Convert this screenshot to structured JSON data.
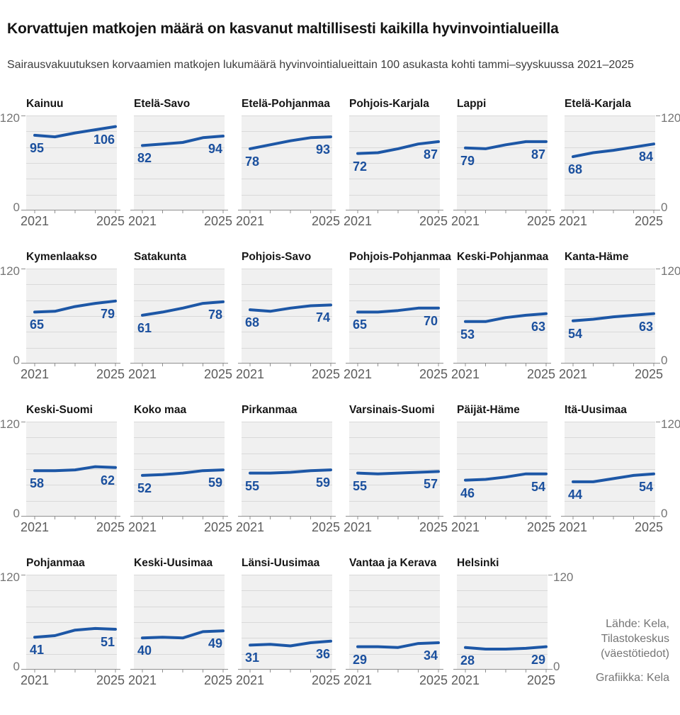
{
  "header": {
    "title": "Korvattujen matkojen määrä on kasvanut maltillisesti kaikilla hyvinvointialueilla",
    "subtitle": "Sairausvakuutuksen korvaamien matkojen lukumäärä hyvinvointialueittain 100 asukasta kohti tammi–syyskuussa 2021–2025"
  },
  "source": {
    "lahde": "Lähde: Kela,\nTilastokeskus\n(väestötiedot)",
    "grafiikka": "Grafiikka: Kela"
  },
  "axes": {
    "y_max_label": "120",
    "y_min_label": "0",
    "x_start_label": "2021",
    "x_end_label": "2025"
  },
  "colors": {
    "line": "#1d57a6",
    "value_label": "#1b509e",
    "plot_bg": "#f0f0f0",
    "gridline": "#d9d9d9",
    "axis": "#8f8f8f",
    "axis_text": "#757575",
    "title_text": "#141414",
    "source_text": "#757575"
  },
  "chart_data": {
    "type": "line",
    "small_multiples": true,
    "x": [
      2021,
      2022,
      2023,
      2024,
      2025
    ],
    "ylim": [
      0,
      120
    ],
    "gridline_step": 20,
    "columns_per_row": 6,
    "x_tick_labels_shown": [
      "2021",
      "2025"
    ],
    "y_tick_labels_shown": [
      "120",
      "0"
    ],
    "series": [
      {
        "name": "Kainuu",
        "values": [
          95,
          93,
          98,
          102,
          106
        ],
        "label_start": "95",
        "label_end": "106"
      },
      {
        "name": "Etelä-Savo",
        "values": [
          82,
          84,
          86,
          92,
          94
        ],
        "label_start": "82",
        "label_end": "94"
      },
      {
        "name": "Etelä-Pohjanmaa",
        "values": [
          78,
          83,
          88,
          92,
          93
        ],
        "label_start": "78",
        "label_end": "93"
      },
      {
        "name": "Pohjois-Karjala",
        "values": [
          72,
          73,
          78,
          84,
          87
        ],
        "label_start": "72",
        "label_end": "87"
      },
      {
        "name": "Lappi",
        "values": [
          79,
          78,
          83,
          87,
          87
        ],
        "label_start": "79",
        "label_end": "87"
      },
      {
        "name": "Etelä-Karjala",
        "values": [
          68,
          73,
          76,
          80,
          84
        ],
        "label_start": "68",
        "label_end": "84"
      },
      {
        "name": "Kymenlaakso",
        "values": [
          65,
          66,
          72,
          76,
          79
        ],
        "label_start": "65",
        "label_end": "79"
      },
      {
        "name": "Satakunta",
        "values": [
          61,
          65,
          70,
          76,
          78
        ],
        "label_start": "61",
        "label_end": "78"
      },
      {
        "name": "Pohjois-Savo",
        "values": [
          68,
          66,
          70,
          73,
          74
        ],
        "label_start": "68",
        "label_end": "74"
      },
      {
        "name": "Pohjois-Pohjanmaa",
        "values": [
          65,
          65,
          67,
          70,
          70
        ],
        "label_start": "65",
        "label_end": "70"
      },
      {
        "name": "Keski-Pohjanmaa",
        "values": [
          53,
          53,
          58,
          61,
          63
        ],
        "label_start": "53",
        "label_end": "63"
      },
      {
        "name": "Kanta-Häme",
        "values": [
          54,
          56,
          59,
          61,
          63
        ],
        "label_start": "54",
        "label_end": "63"
      },
      {
        "name": "Keski-Suomi",
        "values": [
          58,
          58,
          59,
          63,
          62
        ],
        "label_start": "58",
        "label_end": "62"
      },
      {
        "name": "Koko maa",
        "values": [
          52,
          53,
          55,
          58,
          59
        ],
        "label_start": "52",
        "label_end": "59"
      },
      {
        "name": "Pirkanmaa",
        "values": [
          55,
          55,
          56,
          58,
          59
        ],
        "label_start": "55",
        "label_end": "59"
      },
      {
        "name": "Varsinais-Suomi",
        "values": [
          55,
          54,
          55,
          56,
          57
        ],
        "label_start": "55",
        "label_end": "57"
      },
      {
        "name": "Päijät-Häme",
        "values": [
          46,
          47,
          50,
          54,
          54
        ],
        "label_start": "46",
        "label_end": "54"
      },
      {
        "name": "Itä-Uusimaa",
        "values": [
          44,
          44,
          48,
          52,
          54
        ],
        "label_start": "44",
        "label_end": "54"
      },
      {
        "name": "Pohjanmaa",
        "values": [
          41,
          43,
          50,
          52,
          51
        ],
        "label_start": "41",
        "label_end": "51"
      },
      {
        "name": "Keski-Uusimaa",
        "values": [
          40,
          41,
          40,
          48,
          49
        ],
        "label_start": "40",
        "label_end": "49"
      },
      {
        "name": "Länsi-Uusimaa",
        "values": [
          31,
          32,
          30,
          34,
          36
        ],
        "label_start": "31",
        "label_end": "36"
      },
      {
        "name": "Vantaa ja Kerava",
        "values": [
          29,
          29,
          28,
          33,
          34
        ],
        "label_start": "29",
        "label_end": "34"
      },
      {
        "name": "Helsinki",
        "values": [
          28,
          26,
          26,
          27,
          29
        ],
        "label_start": "28",
        "label_end": "29"
      }
    ]
  }
}
